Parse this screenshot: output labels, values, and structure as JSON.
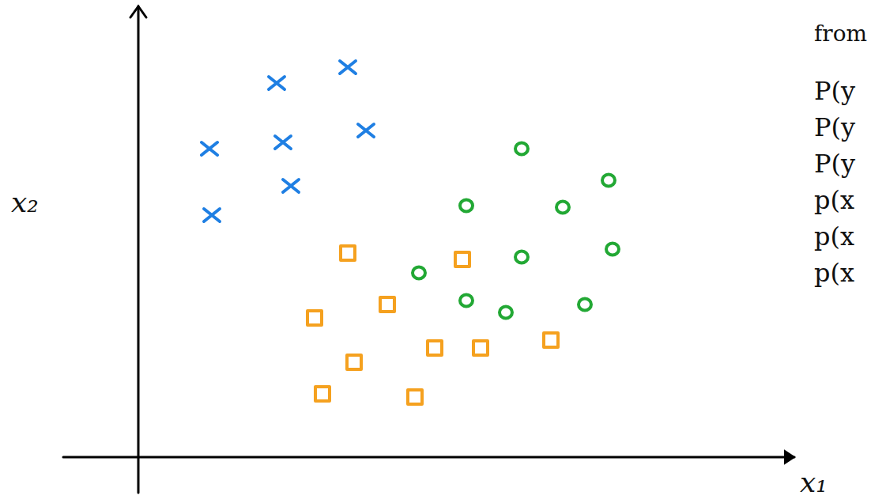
{
  "chart_data": {
    "type": "scatter",
    "x_label": "x₁",
    "y_label": "x₂",
    "annotations": [
      "from",
      "P(y",
      "P(y",
      "P(y",
      "p(x",
      "p(x",
      "p(x"
    ],
    "xlim": [
      0,
      8.3
    ],
    "ylim": [
      0,
      5.7
    ],
    "xticks": [],
    "yticks": [],
    "tick_labels": false,
    "grid": false,
    "series": [
      {
        "color": "#1f7fe3",
        "marker": "x",
        "x": [
          1.75,
          2.65,
          2.88,
          0.9,
          1.83,
          1.93,
          0.93
        ],
        "values": [
          4.73,
          4.93,
          4.13,
          3.9,
          3.98,
          3.43,
          3.06
        ]
      },
      {
        "color": "#22a834",
        "marker": "o",
        "x": [
          4.85,
          5.95,
          4.15,
          5.37,
          4.85,
          6.0,
          3.55,
          4.15,
          4.65,
          5.65
        ],
        "values": [
          3.9,
          3.5,
          3.18,
          3.16,
          2.53,
          2.63,
          2.33,
          1.98,
          1.83,
          1.93
        ]
      },
      {
        "color": "#f5a11f",
        "marker": "s",
        "x": [
          2.65,
          4.1,
          3.15,
          2.23,
          3.75,
          4.33,
          5.22,
          2.73,
          2.33,
          3.5
        ],
        "values": [
          2.58,
          2.5,
          1.93,
          1.76,
          1.38,
          1.38,
          1.48,
          1.2,
          0.8,
          0.76
        ]
      }
    ]
  }
}
